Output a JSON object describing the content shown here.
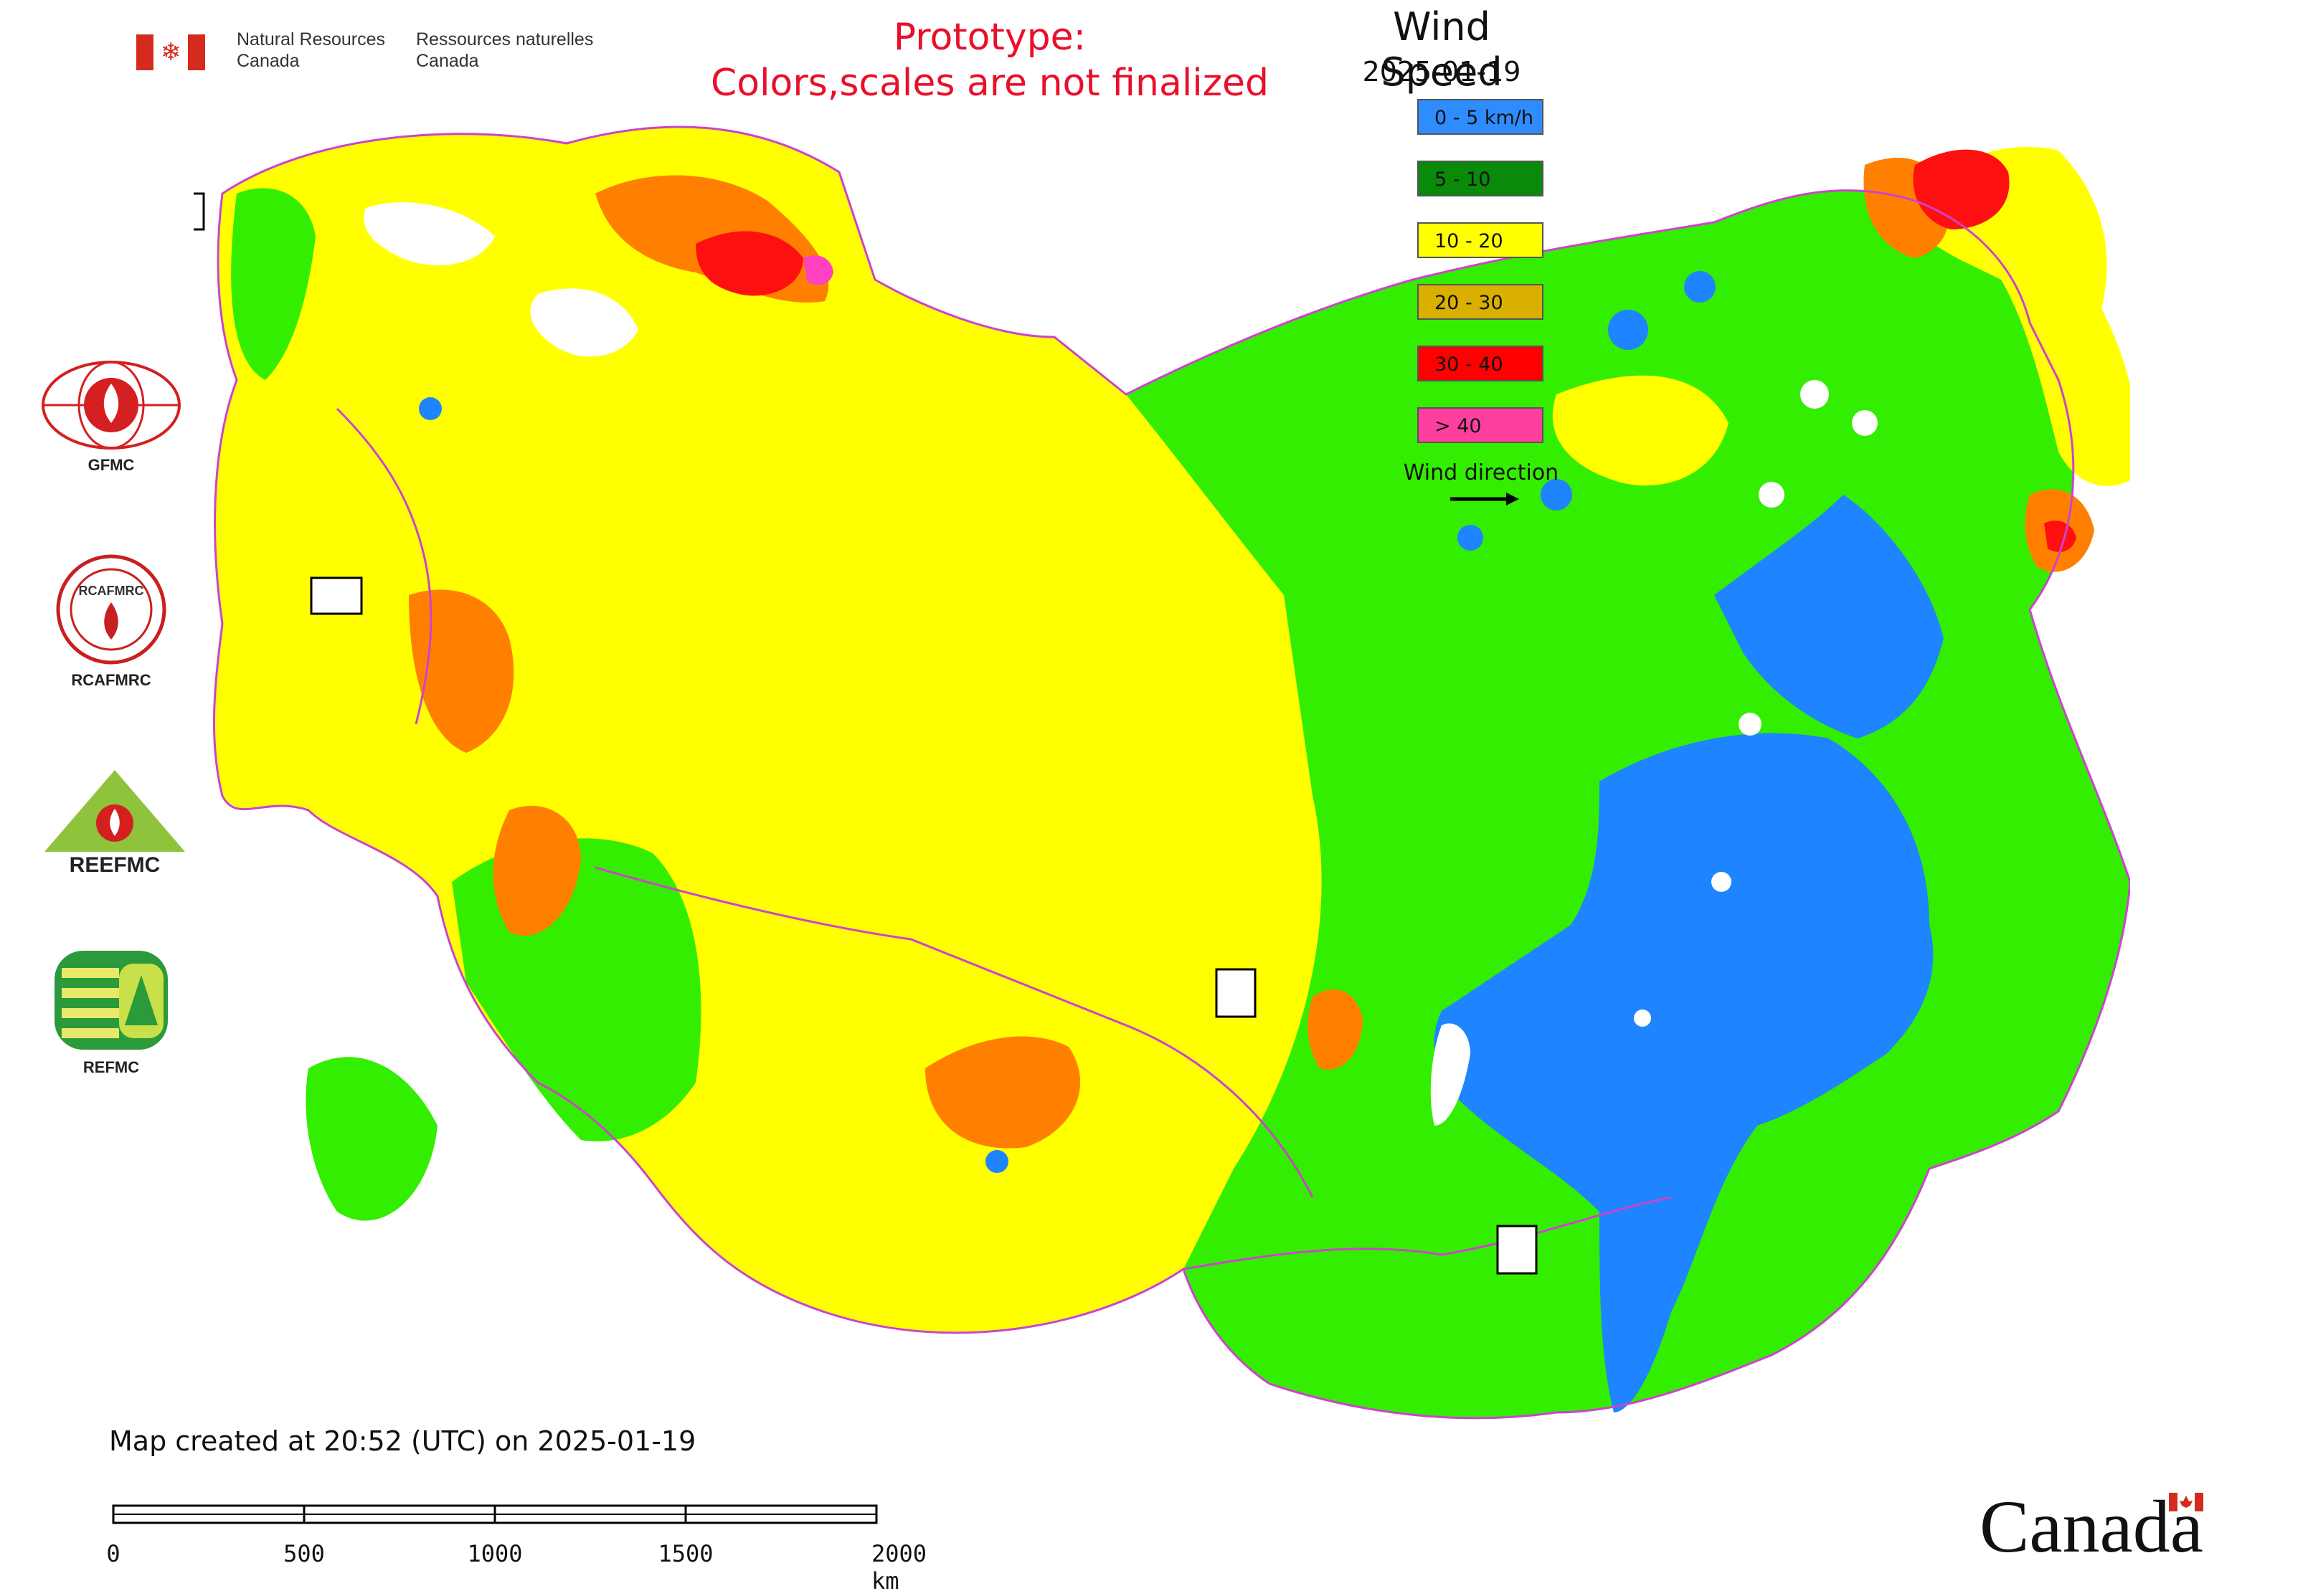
{
  "header": {
    "nrc_en_line1": "Natural Resources",
    "nrc_en_line2": "Canada",
    "nrc_fr_line1": "Ressources naturelles",
    "nrc_fr_line2": "Canada",
    "prototype_line1": "Prototype:",
    "prototype_line2": "Colors,scales are not finalized"
  },
  "legend": {
    "title": "Wind Speed",
    "date": "2025-01-19",
    "items": [
      {
        "label": "0 - 5 km/h",
        "color": "#2f8cff"
      },
      {
        "label": "5 - 10",
        "color": "#0a8a0a"
      },
      {
        "label": "10 - 20",
        "color": "#ffff00"
      },
      {
        "label": "20 - 30",
        "color": "#d9b000"
      },
      {
        "label": "30 - 40",
        "color": "#ff0000"
      },
      {
        "label": "> 40",
        "color": "#ff3fa0"
      }
    ],
    "wind_direction_label": "Wind direction"
  },
  "map_colors": {
    "calm": "#1e84ff",
    "light": "#33ee00",
    "moderate": "#ffff00",
    "fresh": "#ff8000",
    "strong": "#ff1010",
    "gale": "#ff40c0",
    "border": "#cc44cc",
    "water": "#ffffff"
  },
  "organizations": [
    {
      "name": "GFMC",
      "icon": "gfmc-logo-icon"
    },
    {
      "name": "RCAFMRC",
      "icon": "rcafmrc-logo-icon"
    },
    {
      "name": "REEFMC",
      "icon": "reefmc-logo-icon"
    },
    {
      "name": "REFMC",
      "icon": "refmc-logo-icon"
    }
  ],
  "footer": {
    "map_created": "Map created at 20:52 (UTC) on 2025-01-19",
    "scale_labels": [
      "0",
      "500",
      "1000",
      "1500",
      "2000 km"
    ],
    "canada_wordmark": "Canada"
  }
}
